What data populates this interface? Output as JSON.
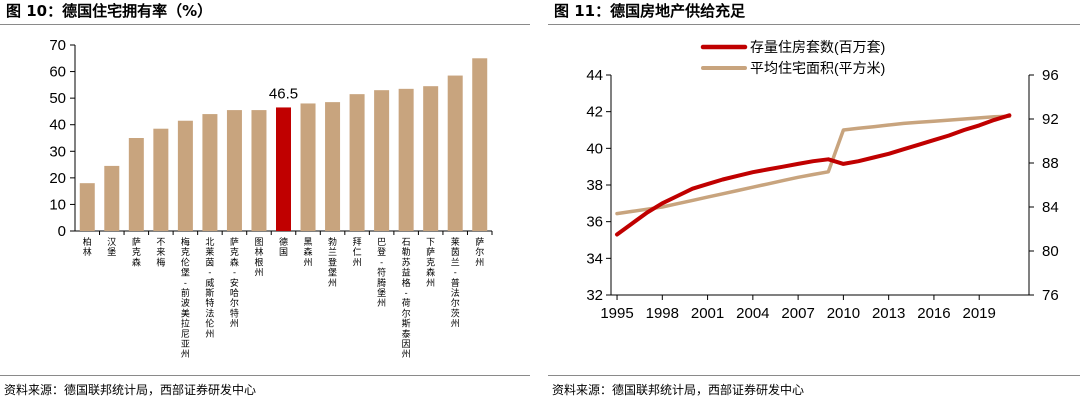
{
  "left": {
    "title": "图 10：德国住宅拥有率（%）",
    "source": "资料来源：德国联邦统计局，西部证券研发中心",
    "colors": {
      "bar": "#c8a47e",
      "highlight": "#c00000"
    },
    "chart_data": {
      "type": "bar",
      "title": "德国住宅拥有率（%）",
      "categories": [
        "柏林",
        "汉堡",
        "萨克森",
        "不来梅",
        "梅克伦堡-前波美拉尼亚州",
        "北莱茵-威斯特法伦州",
        "萨克森-安哈尔特州",
        "图林根州",
        "德国",
        "黑森州",
        "勃兰登堡州",
        "拜仁州",
        "巴登-符腾堡州",
        "石勒苏益格-荷尔斯泰因州",
        "下萨克森州",
        "莱茵兰-普法尔茨州",
        "萨尔州"
      ],
      "values": [
        18,
        24.5,
        35,
        38.5,
        41.5,
        44,
        45.5,
        45.5,
        46.5,
        48,
        48.5,
        51.5,
        53,
        53.5,
        54.5,
        58.5,
        65
      ],
      "highlight_category": "德国",
      "annotation": "46.5",
      "ylim": [
        0,
        70
      ],
      "yticks": [
        0,
        10,
        20,
        30,
        40,
        50,
        60,
        70
      ],
      "xlabel": "",
      "ylabel": "",
      "grid": false
    }
  },
  "right": {
    "title": "图 11：德国房地产供给充足",
    "source": "资料来源：德国联邦统计局，西部证券研发中心",
    "chart_data": {
      "type": "line",
      "title": "德国房地产供给充足",
      "x": [
        1995,
        1996,
        1997,
        1998,
        1999,
        2000,
        2001,
        2002,
        2003,
        2004,
        2005,
        2006,
        2007,
        2008,
        2009,
        2010,
        2011,
        2012,
        2013,
        2014,
        2015,
        2016,
        2017,
        2018,
        2019,
        2020,
        2021
      ],
      "xticks": [
        1995,
        1998,
        2001,
        2004,
        2007,
        2010,
        2013,
        2016,
        2019
      ],
      "xlim": [
        1994.6,
        2022.3
      ],
      "series": [
        {
          "name": "存量住房套数(百万套)",
          "axis": "left",
          "color": "#c00000",
          "values": [
            35.3,
            35.9,
            36.5,
            37.0,
            37.4,
            37.8,
            38.05,
            38.3,
            38.5,
            38.7,
            38.85,
            39.0,
            39.15,
            39.3,
            39.4,
            39.15,
            39.3,
            39.5,
            39.7,
            39.95,
            40.2,
            40.45,
            40.7,
            41.0,
            41.25,
            41.55,
            41.8
          ]
        },
        {
          "name": "平均住宅面积(平方米)",
          "axis": "right",
          "color": "#c8a47e",
          "values": [
            83.4,
            83.6,
            83.8,
            84.0,
            84.3,
            84.6,
            84.9,
            85.2,
            85.5,
            85.8,
            86.1,
            86.4,
            86.7,
            86.95,
            87.2,
            91.0,
            91.15,
            91.3,
            91.45,
            91.6,
            91.7,
            91.8,
            91.9,
            92.0,
            92.1,
            92.2,
            92.25
          ]
        }
      ],
      "y_left": {
        "range": [
          32,
          44
        ],
        "ticks": [
          32,
          34,
          36,
          38,
          40,
          42,
          44
        ]
      },
      "y_right": {
        "range": [
          76,
          96
        ],
        "ticks": [
          76,
          80,
          84,
          88,
          92,
          96
        ]
      },
      "legend": "top-center",
      "grid": false
    }
  }
}
